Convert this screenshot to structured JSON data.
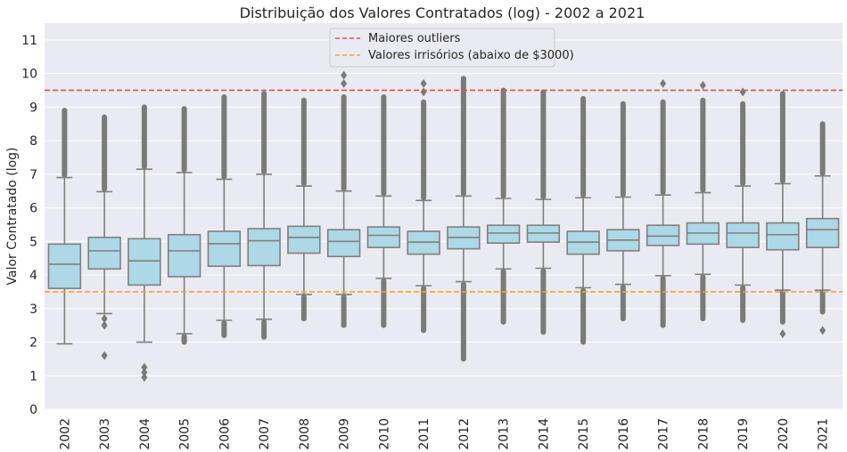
{
  "chart_data": {
    "type": "box",
    "title": "Distribuição dos Valores Contratados (log) - 2002 a 2021",
    "xlabel": "",
    "ylabel": "Valor Contratado (log)",
    "ylim": [
      0,
      11.5
    ],
    "yticks": [
      0,
      1,
      2,
      3,
      4,
      5,
      6,
      7,
      8,
      9,
      10,
      11
    ],
    "grid": true,
    "legend_position": "top-center",
    "box_color": "#add8e6",
    "edge_color": "#7f7f7f",
    "categories": [
      "2002",
      "2003",
      "2004",
      "2005",
      "2006",
      "2007",
      "2008",
      "2009",
      "2010",
      "2011",
      "2012",
      "2013",
      "2014",
      "2015",
      "2016",
      "2017",
      "2018",
      "2019",
      "2020",
      "2021"
    ],
    "boxes": [
      {
        "q1": 3.6,
        "median": 4.32,
        "q3": 4.92,
        "whisker_low": 1.95,
        "whisker_high": 6.9,
        "outlier_low": null,
        "outlier_high": 8.9,
        "outliers": []
      },
      {
        "q1": 4.18,
        "median": 4.72,
        "q3": 5.12,
        "whisker_low": 2.85,
        "whisker_high": 6.48,
        "outlier_low": null,
        "outlier_high": 8.7,
        "outliers": [
          2.7,
          2.5,
          1.6
        ]
      },
      {
        "q1": 3.7,
        "median": 4.42,
        "q3": 5.08,
        "whisker_low": 2.0,
        "whisker_high": 7.15,
        "outlier_low": null,
        "outlier_high": 9.0,
        "outliers": [
          1.25,
          1.1,
          0.95
        ]
      },
      {
        "q1": 3.95,
        "median": 4.72,
        "q3": 5.2,
        "whisker_low": 2.25,
        "whisker_high": 7.05,
        "outlier_low": 2.0,
        "outlier_high": 8.95,
        "outliers": []
      },
      {
        "q1": 4.26,
        "median": 4.93,
        "q3": 5.3,
        "whisker_low": 2.65,
        "whisker_high": 6.85,
        "outlier_low": 2.2,
        "outlier_high": 9.3,
        "outliers": []
      },
      {
        "q1": 4.28,
        "median": 5.02,
        "q3": 5.38,
        "whisker_low": 2.68,
        "whisker_high": 7.0,
        "outlier_low": 2.15,
        "outlier_high": 9.4,
        "outliers": []
      },
      {
        "q1": 4.65,
        "median": 5.12,
        "q3": 5.45,
        "whisker_low": 3.42,
        "whisker_high": 6.65,
        "outlier_low": 2.7,
        "outlier_high": 9.2,
        "outliers": []
      },
      {
        "q1": 4.55,
        "median": 5.0,
        "q3": 5.35,
        "whisker_low": 3.42,
        "whisker_high": 6.5,
        "outlier_low": 2.5,
        "outlier_high": 9.3,
        "outliers": [
          9.7,
          9.95
        ]
      },
      {
        "q1": 4.82,
        "median": 5.18,
        "q3": 5.43,
        "whisker_low": 3.9,
        "whisker_high": 6.35,
        "outlier_low": 2.5,
        "outlier_high": 9.3,
        "outliers": []
      },
      {
        "q1": 4.62,
        "median": 4.98,
        "q3": 5.3,
        "whisker_low": 3.68,
        "whisker_high": 6.22,
        "outlier_low": 2.35,
        "outlier_high": 9.15,
        "outliers": [
          9.45,
          9.7
        ]
      },
      {
        "q1": 4.78,
        "median": 5.12,
        "q3": 5.43,
        "whisker_low": 3.8,
        "whisker_high": 6.35,
        "outlier_low": 1.5,
        "outlier_high": 9.85,
        "outliers": []
      },
      {
        "q1": 4.95,
        "median": 5.25,
        "q3": 5.48,
        "whisker_low": 4.18,
        "whisker_high": 6.28,
        "outlier_low": 2.6,
        "outlier_high": 9.5,
        "outliers": []
      },
      {
        "q1": 4.98,
        "median": 5.25,
        "q3": 5.48,
        "whisker_low": 4.2,
        "whisker_high": 6.25,
        "outlier_low": 2.3,
        "outlier_high": 9.45,
        "outliers": []
      },
      {
        "q1": 4.62,
        "median": 4.98,
        "q3": 5.3,
        "whisker_low": 3.62,
        "whisker_high": 6.3,
        "outlier_low": 2.0,
        "outlier_high": 9.25,
        "outliers": []
      },
      {
        "q1": 4.72,
        "median": 5.04,
        "q3": 5.35,
        "whisker_low": 3.72,
        "whisker_high": 6.32,
        "outlier_low": 2.7,
        "outlier_high": 9.1,
        "outliers": []
      },
      {
        "q1": 4.88,
        "median": 5.16,
        "q3": 5.48,
        "whisker_low": 3.98,
        "whisker_high": 6.38,
        "outlier_low": 2.5,
        "outlier_high": 9.15,
        "outliers": [
          9.7
        ]
      },
      {
        "q1": 4.92,
        "median": 5.25,
        "q3": 5.55,
        "whisker_low": 4.02,
        "whisker_high": 6.45,
        "outlier_low": 2.7,
        "outlier_high": 9.2,
        "outliers": [
          9.65
        ]
      },
      {
        "q1": 4.82,
        "median": 5.25,
        "q3": 5.55,
        "whisker_low": 3.7,
        "whisker_high": 6.65,
        "outlier_low": 2.65,
        "outlier_high": 9.1,
        "outliers": [
          9.45
        ]
      },
      {
        "q1": 4.75,
        "median": 5.2,
        "q3": 5.55,
        "whisker_low": 3.55,
        "whisker_high": 6.72,
        "outlier_low": 2.6,
        "outlier_high": 9.4,
        "outliers": [
          2.25
        ]
      },
      {
        "q1": 4.82,
        "median": 5.35,
        "q3": 5.68,
        "whisker_low": 3.55,
        "whisker_high": 6.95,
        "outlier_low": 2.9,
        "outlier_high": 8.5,
        "outliers": [
          2.35
        ]
      }
    ],
    "reference_lines": [
      {
        "name": "Maiores outliers",
        "y": 9.5,
        "color": "#d9534f",
        "style": "dashed"
      },
      {
        "name": "Valores irrisórios (abaixo de $3000)",
        "y": 3.5,
        "color": "#f5a623",
        "style": "dashed"
      }
    ]
  }
}
